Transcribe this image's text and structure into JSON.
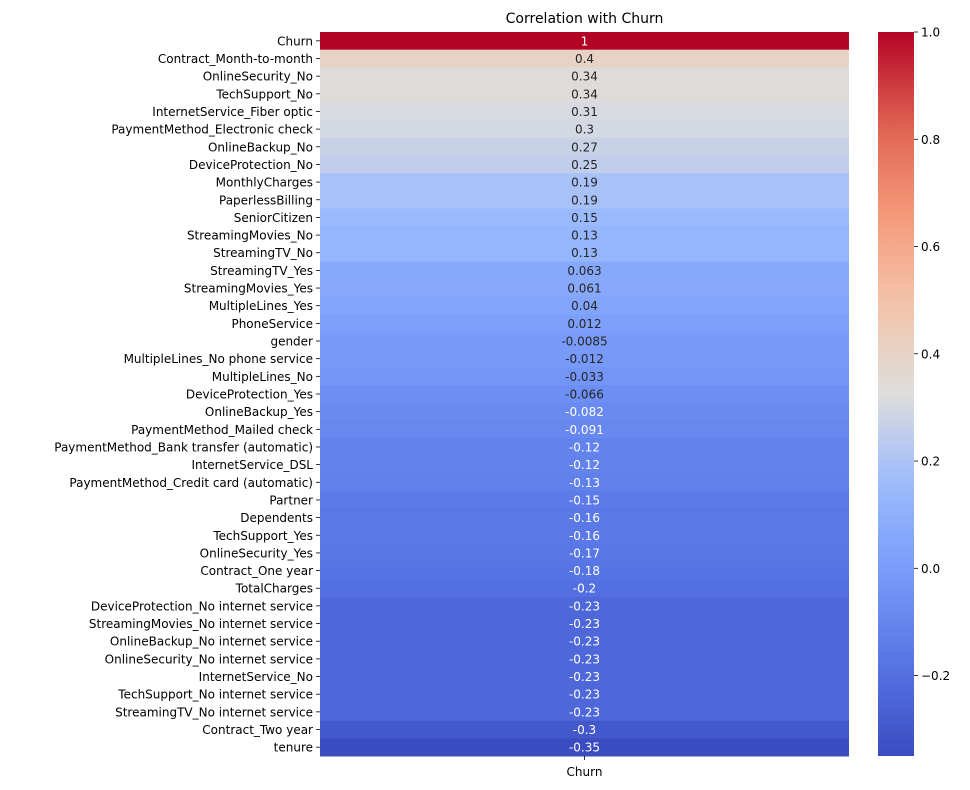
{
  "chart_data": {
    "type": "heatmap",
    "title": "Correlation with Churn",
    "xlabel": "",
    "ylabel": "",
    "columns": [
      "Churn"
    ],
    "rows": [
      "Churn",
      "Contract_Month-to-month",
      "OnlineSecurity_No",
      "TechSupport_No",
      "InternetService_Fiber optic",
      "PaymentMethod_Electronic check",
      "OnlineBackup_No",
      "DeviceProtection_No",
      "MonthlyCharges",
      "PaperlessBilling",
      "SeniorCitizen",
      "StreamingMovies_No",
      "StreamingTV_No",
      "StreamingTV_Yes",
      "StreamingMovies_Yes",
      "MultipleLines_Yes",
      "PhoneService",
      "gender",
      "MultipleLines_No phone service",
      "MultipleLines_No",
      "DeviceProtection_Yes",
      "OnlineBackup_Yes",
      "PaymentMethod_Mailed check",
      "PaymentMethod_Bank transfer (automatic)",
      "InternetService_DSL",
      "PaymentMethod_Credit card (automatic)",
      "Partner",
      "Dependents",
      "TechSupport_Yes",
      "OnlineSecurity_Yes",
      "Contract_One year",
      "TotalCharges",
      "DeviceProtection_No internet service",
      "StreamingMovies_No internet service",
      "OnlineBackup_No internet service",
      "OnlineSecurity_No internet service",
      "InternetService_No",
      "TechSupport_No internet service",
      "StreamingTV_No internet service",
      "Contract_Two year",
      "tenure"
    ],
    "values": [
      1,
      0.4,
      0.34,
      0.34,
      0.31,
      0.3,
      0.27,
      0.25,
      0.19,
      0.19,
      0.15,
      0.13,
      0.13,
      0.063,
      0.061,
      0.04,
      0.012,
      -0.0085,
      -0.012,
      -0.033,
      -0.066,
      -0.082,
      -0.091,
      -0.12,
      -0.12,
      -0.13,
      -0.15,
      -0.16,
      -0.16,
      -0.17,
      -0.18,
      -0.2,
      -0.23,
      -0.23,
      -0.23,
      -0.23,
      -0.23,
      -0.23,
      -0.23,
      -0.3,
      -0.35
    ],
    "labels": [
      "1",
      "0.4",
      "0.34",
      "0.34",
      "0.31",
      "0.3",
      "0.27",
      "0.25",
      "0.19",
      "0.19",
      "0.15",
      "0.13",
      "0.13",
      "0.063",
      "0.061",
      "0.04",
      "0.012",
      "-0.0085",
      "-0.012",
      "-0.033",
      "-0.066",
      "-0.082",
      "-0.091",
      "-0.12",
      "-0.12",
      "-0.13",
      "-0.15",
      "-0.16",
      "-0.16",
      "-0.17",
      "-0.18",
      "-0.2",
      "-0.23",
      "-0.23",
      "-0.23",
      "-0.23",
      "-0.23",
      "-0.23",
      "-0.23",
      "-0.3",
      "-0.35"
    ],
    "colormap": "coolwarm",
    "vmin": -0.35,
    "vmax": 1.0,
    "colorbar_ticks": [
      1.0,
      0.8,
      0.6,
      0.4,
      0.2,
      0.0,
      -0.2
    ],
    "colorbar_tick_labels": [
      "1.0",
      "0.8",
      "0.6",
      "0.4",
      "0.2",
      "0.0",
      "−0.2"
    ]
  }
}
